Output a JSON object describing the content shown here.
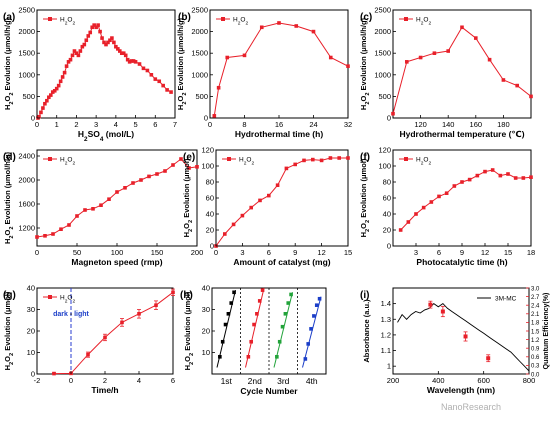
{
  "panels": [
    {
      "key": "a",
      "label": "(a)",
      "title": "",
      "type": "line",
      "legend": "H2O2",
      "xlabel": "H2SO4 (mol/L)",
      "ylabel": "H2O2 Evolution (μmol/h/g)",
      "xlim": [
        0,
        7
      ],
      "ylim": [
        0,
        2500
      ],
      "xticks": [
        0,
        1,
        2,
        3,
        4,
        5,
        6,
        7
      ],
      "yticks": [
        0,
        500,
        1000,
        1500,
        2000,
        2500
      ],
      "x": [
        0.05,
        0.1,
        0.2,
        0.3,
        0.4,
        0.5,
        0.6,
        0.7,
        0.8,
        0.9,
        1.0,
        1.1,
        1.2,
        1.3,
        1.4,
        1.5,
        1.6,
        1.7,
        1.8,
        1.9,
        2.0,
        2.1,
        2.2,
        2.3,
        2.4,
        2.5,
        2.6,
        2.7,
        2.8,
        2.9,
        3.0,
        3.1,
        3.2,
        3.3,
        3.4,
        3.5,
        3.6,
        3.7,
        3.8,
        3.9,
        4.0,
        4.1,
        4.2,
        4.3,
        4.4,
        4.5,
        4.6,
        4.7,
        4.8,
        4.9,
        5.0,
        5.2,
        5.4,
        5.6,
        5.8,
        6.0,
        6.2,
        6.4,
        6.6,
        6.8
      ],
      "y": [
        0,
        30,
        130,
        230,
        330,
        400,
        480,
        530,
        600,
        630,
        680,
        750,
        850,
        950,
        1050,
        1200,
        1300,
        1350,
        1450,
        1550,
        1500,
        1450,
        1550,
        1650,
        1700,
        1800,
        1900,
        1980,
        2100,
        2150,
        2100,
        2150,
        2000,
        1850,
        1750,
        1700,
        1750,
        1800,
        1850,
        1750,
        1650,
        1600,
        1550,
        1500,
        1500,
        1450,
        1350,
        1300,
        1320,
        1320,
        1300,
        1250,
        1150,
        1100,
        1000,
        900,
        850,
        750,
        650,
        600
      ]
    },
    {
      "key": "b",
      "label": "(b)",
      "title": "",
      "type": "line",
      "legend": "H2O2",
      "xlabel": "Hydrothermal time (h)",
      "ylabel": "H2O2 Evolution (μmol/h/g)",
      "xlim": [
        0,
        32
      ],
      "ylim": [
        0,
        2500
      ],
      "xticks": [
        0,
        8,
        16,
        24,
        32
      ],
      "yticks": [
        0,
        500,
        1000,
        1500,
        2000,
        2500
      ],
      "x": [
        1,
        2,
        4,
        8,
        12,
        16,
        20,
        24,
        28,
        32
      ],
      "y": [
        50,
        700,
        1400,
        1450,
        2100,
        2200,
        2130,
        2000,
        1400,
        1200
      ]
    },
    {
      "key": "c",
      "label": "(c)",
      "title": "",
      "type": "line",
      "legend": "H2O2",
      "xlabel": "Hydrothermal temperature (℃)",
      "ylabel": "H2O2 Evolution (μmol/h/g)",
      "xlim": [
        100,
        200
      ],
      "ylim": [
        0,
        2500
      ],
      "xticks": [
        120,
        140,
        160,
        180
      ],
      "yticks": [
        0,
        500,
        1000,
        1500,
        2000,
        2500
      ],
      "x": [
        100,
        110,
        120,
        130,
        140,
        150,
        160,
        170,
        180,
        190,
        200
      ],
      "y": [
        100,
        1300,
        1400,
        1500,
        1550,
        2100,
        1850,
        1350,
        880,
        750,
        500
      ]
    },
    {
      "key": "d",
      "label": "(d)",
      "title": "",
      "type": "line",
      "legend": "H2O2",
      "xlabel": "Magneton speed (rmp)",
      "ylabel": "H2O2 Evolution (μmol/h/g)",
      "xlim": [
        0,
        200
      ],
      "ylim": [
        900,
        2500
      ],
      "xticks": [
        0,
        50,
        100,
        150,
        200
      ],
      "yticks": [
        1200,
        1600,
        2000,
        2400
      ],
      "x": [
        0,
        10,
        20,
        30,
        40,
        50,
        60,
        70,
        80,
        90,
        100,
        110,
        120,
        130,
        140,
        150,
        160,
        170,
        180,
        190,
        200
      ],
      "y": [
        1050,
        1070,
        1100,
        1180,
        1250,
        1400,
        1500,
        1520,
        1580,
        1680,
        1800,
        1870,
        1950,
        2000,
        2060,
        2100,
        2150,
        2250,
        2350,
        2200,
        2220
      ]
    },
    {
      "key": "e",
      "label": "(e)",
      "title": "",
      "type": "line",
      "legend": "H2O2",
      "xlabel": "Amount of catalyst (mg)",
      "ylabel": "H2O2 Evolution (μmol)",
      "xlim": [
        0,
        15
      ],
      "ylim": [
        0,
        120
      ],
      "xticks": [
        0,
        3,
        6,
        9,
        12,
        15
      ],
      "yticks": [
        0,
        20,
        40,
        60,
        80,
        100,
        120
      ],
      "x": [
        0,
        1,
        2,
        3,
        4,
        5,
        6,
        7,
        8,
        9,
        10,
        11,
        12,
        13,
        14,
        15
      ],
      "y": [
        0,
        15,
        27,
        38,
        48,
        57,
        63,
        76,
        97,
        102,
        107,
        108,
        107,
        110,
        110,
        110
      ]
    },
    {
      "key": "f",
      "label": "(f)",
      "title": "",
      "type": "line",
      "legend": "H2O2",
      "xlabel": "Photocatalytic time (h)",
      "ylabel": "H2O2 Evolution (μmol)",
      "xlim": [
        0,
        18
      ],
      "ylim": [
        0,
        120
      ],
      "xticks": [
        3,
        6,
        9,
        12,
        15,
        18
      ],
      "yticks": [
        0,
        20,
        40,
        60,
        80,
        100,
        120
      ],
      "x": [
        1,
        2,
        3,
        4,
        5,
        6,
        7,
        8,
        9,
        10,
        11,
        12,
        13,
        14,
        15,
        16,
        17,
        18
      ],
      "y": [
        20,
        30,
        40,
        48,
        55,
        62,
        66,
        75,
        80,
        83,
        88,
        93,
        95,
        88,
        90,
        85,
        85,
        86
      ]
    },
    {
      "key": "g",
      "label": "(g)",
      "title": "",
      "type": "errorline",
      "legend": "H2O2",
      "xlabel": "Time/h",
      "ylabel": "H2O2 Evolution (μmol)",
      "xlim": [
        -2,
        6
      ],
      "ylim": [
        0,
        40
      ],
      "xticks": [
        -2,
        0,
        2,
        4,
        6
      ],
      "yticks": [
        0,
        10,
        20,
        30,
        40
      ],
      "x": [
        -1,
        0,
        1,
        2,
        3,
        4,
        5,
        6
      ],
      "y": [
        0.2,
        0.3,
        9,
        17,
        24,
        28,
        32,
        38
      ],
      "err": [
        0.3,
        0.3,
        1.2,
        1.5,
        1.8,
        2,
        2,
        1.5
      ],
      "dark_label": "dark",
      "sep": "-",
      "light_label": "light"
    },
    {
      "key": "h",
      "label": "(h)",
      "title": "",
      "type": "cycles",
      "xlabel": "Cycle Number",
      "ylabel": "H2O2 Evolution (μmol)",
      "ylim": [
        0,
        40
      ],
      "yticks": [
        10,
        20,
        30,
        40
      ],
      "xticklabels": [
        "1st",
        "2nd",
        "3rd",
        "4th"
      ],
      "series": [
        {
          "name": "1st",
          "color": "#000000",
          "y": [
            8,
            15,
            23,
            28,
            33,
            38
          ]
        },
        {
          "name": "2nd",
          "color": "#e8202a",
          "y": [
            8,
            15,
            23,
            28,
            34,
            39
          ]
        },
        {
          "name": "3rd",
          "color": "#22a33a",
          "y": [
            8,
            15,
            22,
            28,
            33,
            37
          ]
        },
        {
          "name": "4th",
          "color": "#1b3ec8",
          "y": [
            7,
            14,
            21,
            27,
            32,
            35
          ]
        }
      ]
    },
    {
      "key": "i",
      "label": "(i)",
      "title": "",
      "type": "absorbance_qe",
      "legend": "3M-MC",
      "xlabel": "Wavelength (nm)",
      "ylabel": "Absorbance (a.u.)",
      "y2label": "Quantum Efficiency(%)",
      "xlim": [
        200,
        800
      ],
      "ylim": [
        0.95,
        1.5
      ],
      "y2lim": [
        0,
        3.0
      ],
      "xticks": [
        200,
        400,
        600,
        800
      ],
      "yticks": [
        1.0,
        1.1,
        1.2,
        1.3,
        1.4
      ],
      "y2ticks": [
        0.0,
        0.3,
        0.6,
        0.9,
        1.2,
        1.5,
        1.8,
        2.1,
        2.4,
        2.7,
        3.0
      ],
      "absorbance": {
        "x": [
          220,
          240,
          260,
          280,
          300,
          320,
          340,
          360,
          380,
          400,
          420,
          440,
          460,
          480,
          500,
          520,
          540,
          560,
          580,
          600,
          620,
          640,
          660,
          680,
          700,
          720,
          740,
          760,
          780,
          800
        ],
        "y": [
          1.28,
          1.33,
          1.3,
          1.33,
          1.35,
          1.34,
          1.36,
          1.37,
          1.4,
          1.38,
          1.4,
          1.37,
          1.35,
          1.33,
          1.31,
          1.29,
          1.27,
          1.25,
          1.23,
          1.21,
          1.19,
          1.17,
          1.15,
          1.13,
          1.11,
          1.09,
          1.06,
          1.03,
          1.0,
          0.97
        ]
      },
      "qe": {
        "x": [
          365,
          420,
          520,
          620
        ],
        "y": [
          2.42,
          2.18,
          1.31,
          0.55
        ],
        "err": [
          0.12,
          0.18,
          0.16,
          0.12
        ]
      }
    }
  ],
  "colors": {
    "series": "#e8202a",
    "axis": "#000000",
    "dashed": "#2a3cd0",
    "qe": "#e8202a"
  },
  "watermark": "NanoResearch"
}
